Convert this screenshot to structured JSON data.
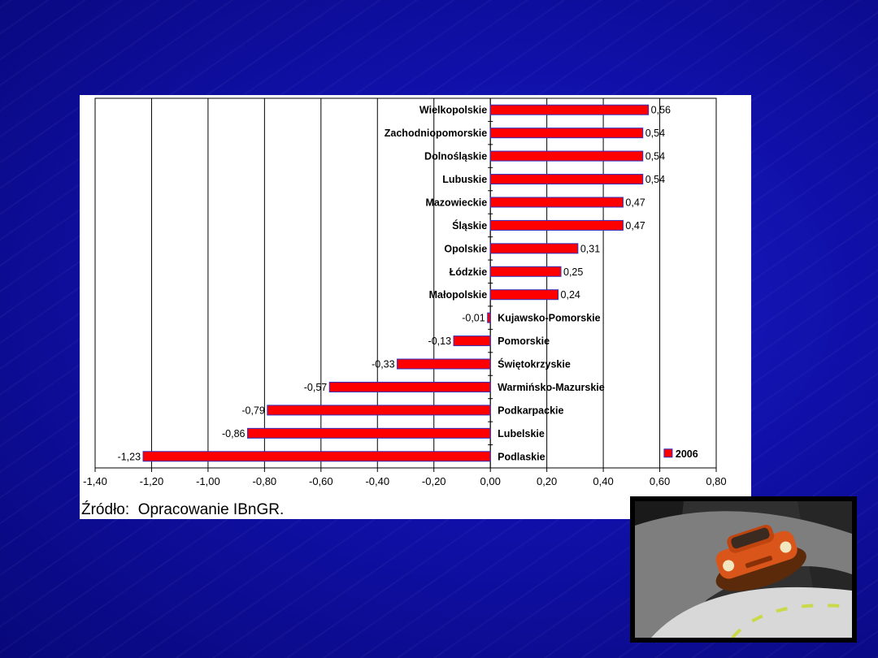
{
  "source_note": "Źródło:  Opracowanie IBnGR.",
  "chart_data": {
    "type": "bar",
    "orientation": "horizontal",
    "categories": [
      "Wielkopolskie",
      "Zachodniopomorskie",
      "Dolnośląskie",
      "Lubuskie",
      "Mazowieckie",
      "Śląskie",
      "Opolskie",
      "Łódzkie",
      "Małopolskie",
      "Kujawsko-Pomorskie",
      "Pomorskie",
      "Świętokrzyskie",
      "Warmińsko-Mazurskie",
      "Podkarpackie",
      "Lubelskie",
      "Podlaskie"
    ],
    "values": [
      0.56,
      0.54,
      0.54,
      0.54,
      0.47,
      0.47,
      0.31,
      0.25,
      0.24,
      -0.01,
      -0.13,
      -0.33,
      -0.57,
      -0.79,
      -0.86,
      -1.23
    ],
    "value_labels": [
      "0,56",
      "0,54",
      "0,54",
      "0,54",
      "0,47",
      "0,47",
      "0,31",
      "0,25",
      "0,24",
      "-0,01",
      "-0,13",
      "-0,33",
      "-0,57",
      "-0,79",
      "-0,86",
      "-1,23"
    ],
    "series": [
      {
        "name": "2006",
        "values": [
          0.56,
          0.54,
          0.54,
          0.54,
          0.47,
          0.47,
          0.31,
          0.25,
          0.24,
          -0.01,
          -0.13,
          -0.33,
          -0.57,
          -0.79,
          -0.86,
          -1.23
        ]
      }
    ],
    "xlim": [
      -1.4,
      0.8
    ],
    "x_ticks": [
      -1.4,
      -1.2,
      -1.0,
      -0.8,
      -0.6,
      -0.4,
      -0.2,
      0.0,
      0.2,
      0.4,
      0.6,
      0.8
    ],
    "x_tick_labels": [
      "-1,40",
      "-1,20",
      "-1,00",
      "-0,80",
      "-0,60",
      "-0,40",
      "-0,20",
      "0,00",
      "0,20",
      "0,40",
      "0,60",
      "0,80"
    ],
    "grid": true,
    "legend": {
      "position": "bottom-right",
      "label": "2006"
    },
    "colors": {
      "bar": "#ff0000",
      "bar_edge": "#3030c0",
      "grid": "#000000"
    }
  },
  "photo": {
    "icon": "racing-car-image"
  }
}
